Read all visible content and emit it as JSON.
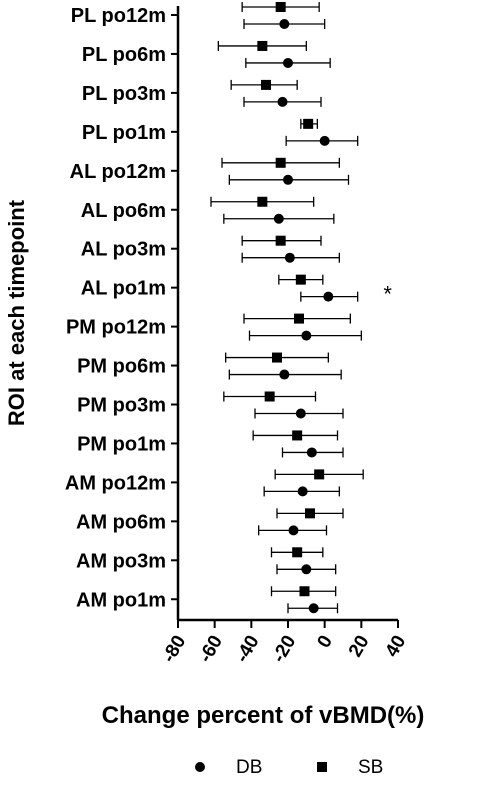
{
  "chart_data": {
    "type": "scatter",
    "ylabel": "ROI at each timepoint",
    "xlabel": "Change percent of vBMD(%)",
    "xlim": [
      -80,
      40
    ],
    "xticks": [
      "-80",
      "-60",
      "-40",
      "-20",
      "0",
      "20",
      "40"
    ],
    "categories": [
      "PL po12m",
      "PL po6m",
      "PL po3m",
      "PL po1m",
      "AL po12m",
      "AL po6m",
      "AL po3m",
      "AL po1m",
      "PM po12m",
      "PM po6m",
      "PM po3m",
      "PM po1m",
      "AM po12m",
      "AM po6m",
      "AM po3m",
      "AM po1m"
    ],
    "series": [
      {
        "name": "DB",
        "marker": "circle",
        "mean": [
          -22,
          -20,
          -23,
          0,
          -20,
          -25,
          -19,
          2,
          -10,
          -22,
          -13,
          -7,
          -12,
          -17,
          -10,
          -6
        ],
        "lower": [
          -44,
          -43,
          -44,
          -21,
          -52,
          -55,
          -45,
          -13,
          -41,
          -52,
          -38,
          -23,
          -33,
          -36,
          -26,
          -20
        ],
        "upper": [
          0,
          3,
          -2,
          18,
          13,
          5,
          8,
          18,
          20,
          9,
          10,
          10,
          8,
          1,
          6,
          7
        ]
      },
      {
        "name": "SB",
        "marker": "square",
        "mean": [
          -24,
          -34,
          -32,
          -9,
          -24,
          -34,
          -24,
          -13,
          -14,
          -26,
          -30,
          -15,
          -3,
          -8,
          -15,
          -11
        ],
        "lower": [
          -45,
          -58,
          -51,
          -13,
          -56,
          -62,
          -45,
          -25,
          -44,
          -54,
          -55,
          -39,
          -27,
          -26,
          -29,
          -29
        ],
        "upper": [
          -3,
          -10,
          -15,
          -4,
          8,
          -6,
          -2,
          -1,
          14,
          2,
          -5,
          7,
          21,
          10,
          -1,
          6
        ]
      }
    ],
    "annotations": [
      {
        "text": "*",
        "category": "AL po1m",
        "x": 32
      }
    ],
    "legend_position": "bottom",
    "grid": false
  }
}
